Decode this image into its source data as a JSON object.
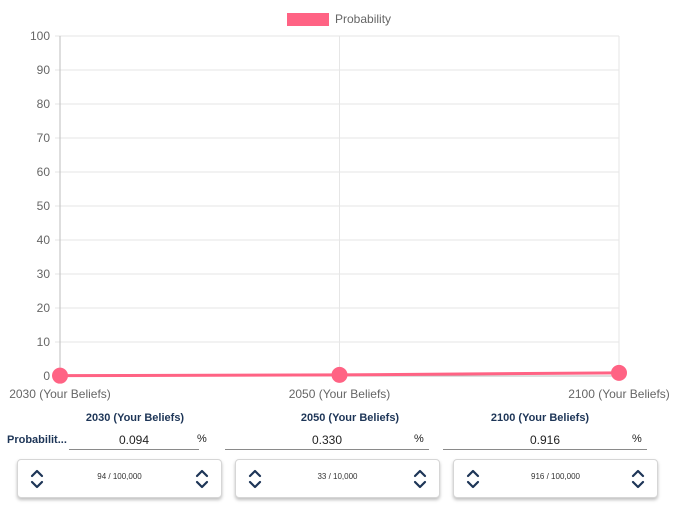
{
  "chart_data": {
    "type": "line",
    "categories": [
      "2030 (Your Beliefs)",
      "2050 (Your Beliefs)",
      "2100 (Your Beliefs)"
    ],
    "series": [
      {
        "name": "Probability",
        "values": [
          0.094,
          0.33,
          0.916
        ],
        "color": "#ff6384"
      }
    ],
    "ylim": [
      0,
      100
    ],
    "yticks": [
      0,
      10,
      20,
      30,
      40,
      50,
      60,
      70,
      80,
      90,
      100
    ],
    "grid": true,
    "legend": "top-center"
  },
  "legend": {
    "label": "Probability",
    "color": "#ff6384"
  },
  "row_label": "Probabilit...",
  "columns": [
    {
      "header": "2030 (Your Beliefs)",
      "value": "0.094",
      "unit": "%",
      "count": "94 / 100,000"
    },
    {
      "header": "2050 (Your Beliefs)",
      "value": "0.330",
      "unit": "%",
      "count": "33 / 10,000"
    },
    {
      "header": "2100 (Your Beliefs)",
      "value": "0.916",
      "unit": "%",
      "count": "916 / 100,000"
    }
  ],
  "icons": {
    "stepper": "chevron-up-down-icon"
  }
}
